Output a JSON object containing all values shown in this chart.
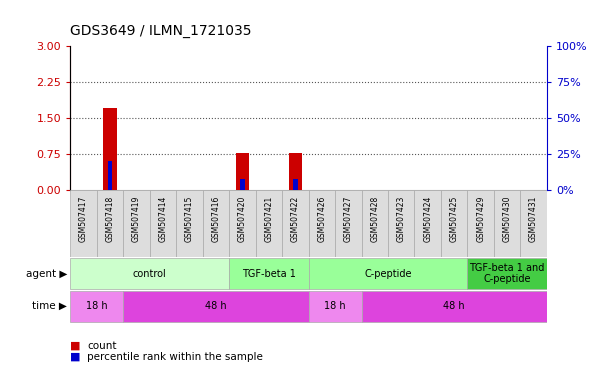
{
  "title": "GDS3649 / ILMN_1721035",
  "samples": [
    "GSM507417",
    "GSM507418",
    "GSM507419",
    "GSM507414",
    "GSM507415",
    "GSM507416",
    "GSM507420",
    "GSM507421",
    "GSM507422",
    "GSM507426",
    "GSM507427",
    "GSM507428",
    "GSM507423",
    "GSM507424",
    "GSM507425",
    "GSM507429",
    "GSM507430",
    "GSM507431"
  ],
  "count_values": [
    0,
    1.72,
    0,
    0,
    0,
    0,
    0.77,
    0,
    0.77,
    0,
    0,
    0,
    0,
    0,
    0,
    0,
    0,
    0
  ],
  "percentile_values_pct": [
    0,
    20,
    0,
    0,
    0,
    0,
    8,
    0,
    8,
    0,
    0,
    0,
    0,
    0,
    0,
    0,
    0,
    0
  ],
  "ylim_left": [
    0,
    3
  ],
  "ylim_right": [
    0,
    100
  ],
  "yticks_left": [
    0,
    0.75,
    1.5,
    2.25,
    3
  ],
  "yticks_right": [
    0,
    25,
    50,
    75,
    100
  ],
  "bar_color": "#cc0000",
  "percentile_color": "#0000cc",
  "agent_groups": [
    {
      "label": "control",
      "start": 0,
      "end": 6,
      "color": "#ccffcc"
    },
    {
      "label": "TGF-beta 1",
      "start": 6,
      "end": 9,
      "color": "#99ff99"
    },
    {
      "label": "C-peptide",
      "start": 9,
      "end": 15,
      "color": "#99ff99"
    },
    {
      "label": "TGF-beta 1 and\nC-peptide",
      "start": 15,
      "end": 18,
      "color": "#44cc44"
    }
  ],
  "time_groups": [
    {
      "label": "18 h",
      "start": 0,
      "end": 2,
      "color": "#ee88ee"
    },
    {
      "label": "48 h",
      "start": 2,
      "end": 9,
      "color": "#dd44dd"
    },
    {
      "label": "18 h",
      "start": 9,
      "end": 11,
      "color": "#ee88ee"
    },
    {
      "label": "48 h",
      "start": 11,
      "end": 18,
      "color": "#dd44dd"
    }
  ],
  "legend_count_color": "#cc0000",
  "legend_percentile_color": "#0000cc",
  "grid_color": "#888888",
  "background_color": "#ffffff",
  "tick_label_color_left": "#cc0000",
  "tick_label_color_right": "#0000cc",
  "sample_box_color": "#dddddd",
  "sample_box_edge": "#aaaaaa"
}
